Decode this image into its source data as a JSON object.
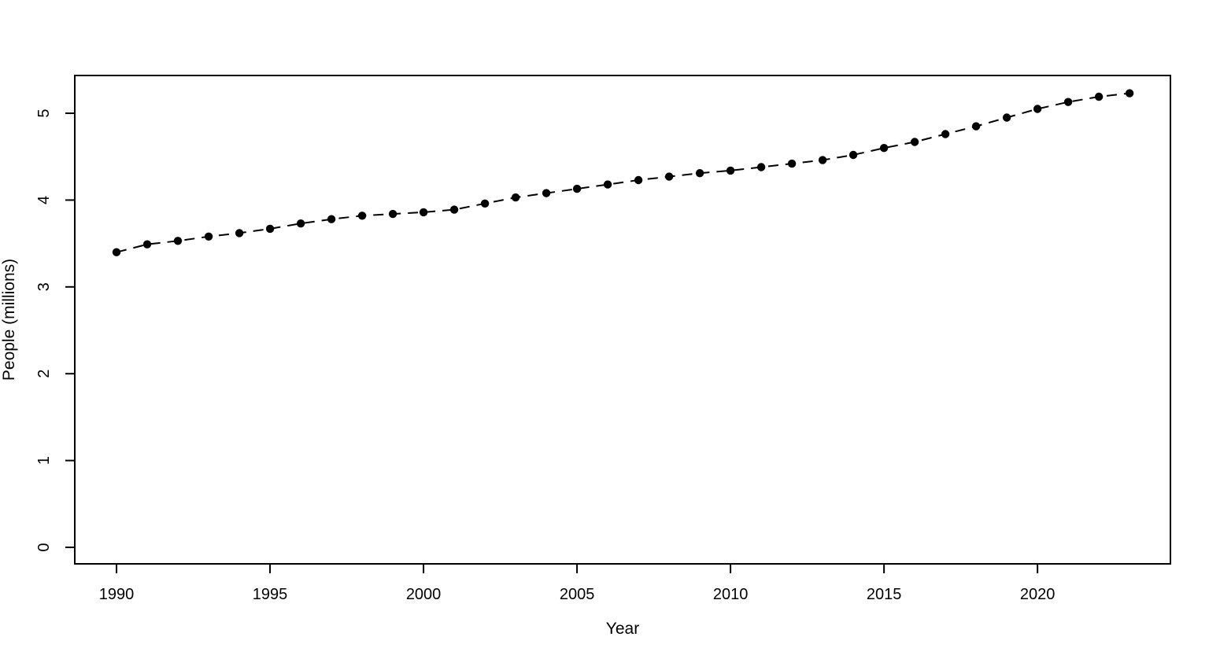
{
  "figure": {
    "description": "Scatter/line plot of population over time, R base-graphics style",
    "background_color": "#ffffff",
    "foreground_color": "#000000"
  },
  "chart_data": {
    "type": "line",
    "title": "",
    "xlabel": "Year",
    "ylabel": "People (millions)",
    "x": [
      1990,
      1991,
      1992,
      1993,
      1994,
      1995,
      1996,
      1997,
      1998,
      1999,
      2000,
      2001,
      2002,
      2003,
      2004,
      2005,
      2006,
      2007,
      2008,
      2009,
      2010,
      2011,
      2012,
      2013,
      2014,
      2015,
      2016,
      2017,
      2018,
      2019,
      2020,
      2021,
      2022,
      2023
    ],
    "values": [
      3.4,
      3.49,
      3.53,
      3.58,
      3.62,
      3.67,
      3.73,
      3.78,
      3.82,
      3.84,
      3.86,
      3.89,
      3.96,
      4.03,
      4.08,
      4.13,
      4.18,
      4.23,
      4.27,
      4.31,
      4.34,
      4.38,
      4.42,
      4.46,
      4.52,
      4.6,
      4.67,
      4.76,
      4.85,
      4.95,
      5.05,
      5.13,
      5.19,
      5.23
    ],
    "xticks": [
      1990,
      1995,
      2000,
      2005,
      2010,
      2015,
      2020
    ],
    "yticks": [
      0,
      1,
      2,
      3,
      4,
      5
    ],
    "xlim": [
      1988.64,
      2024.33
    ],
    "ylim": [
      -0.19,
      5.435
    ],
    "grid": false,
    "legend": "none",
    "marker": "filled-circle",
    "marker_color": "#000000",
    "line_style": "dashed",
    "line_color": "#000000",
    "box": "full"
  }
}
